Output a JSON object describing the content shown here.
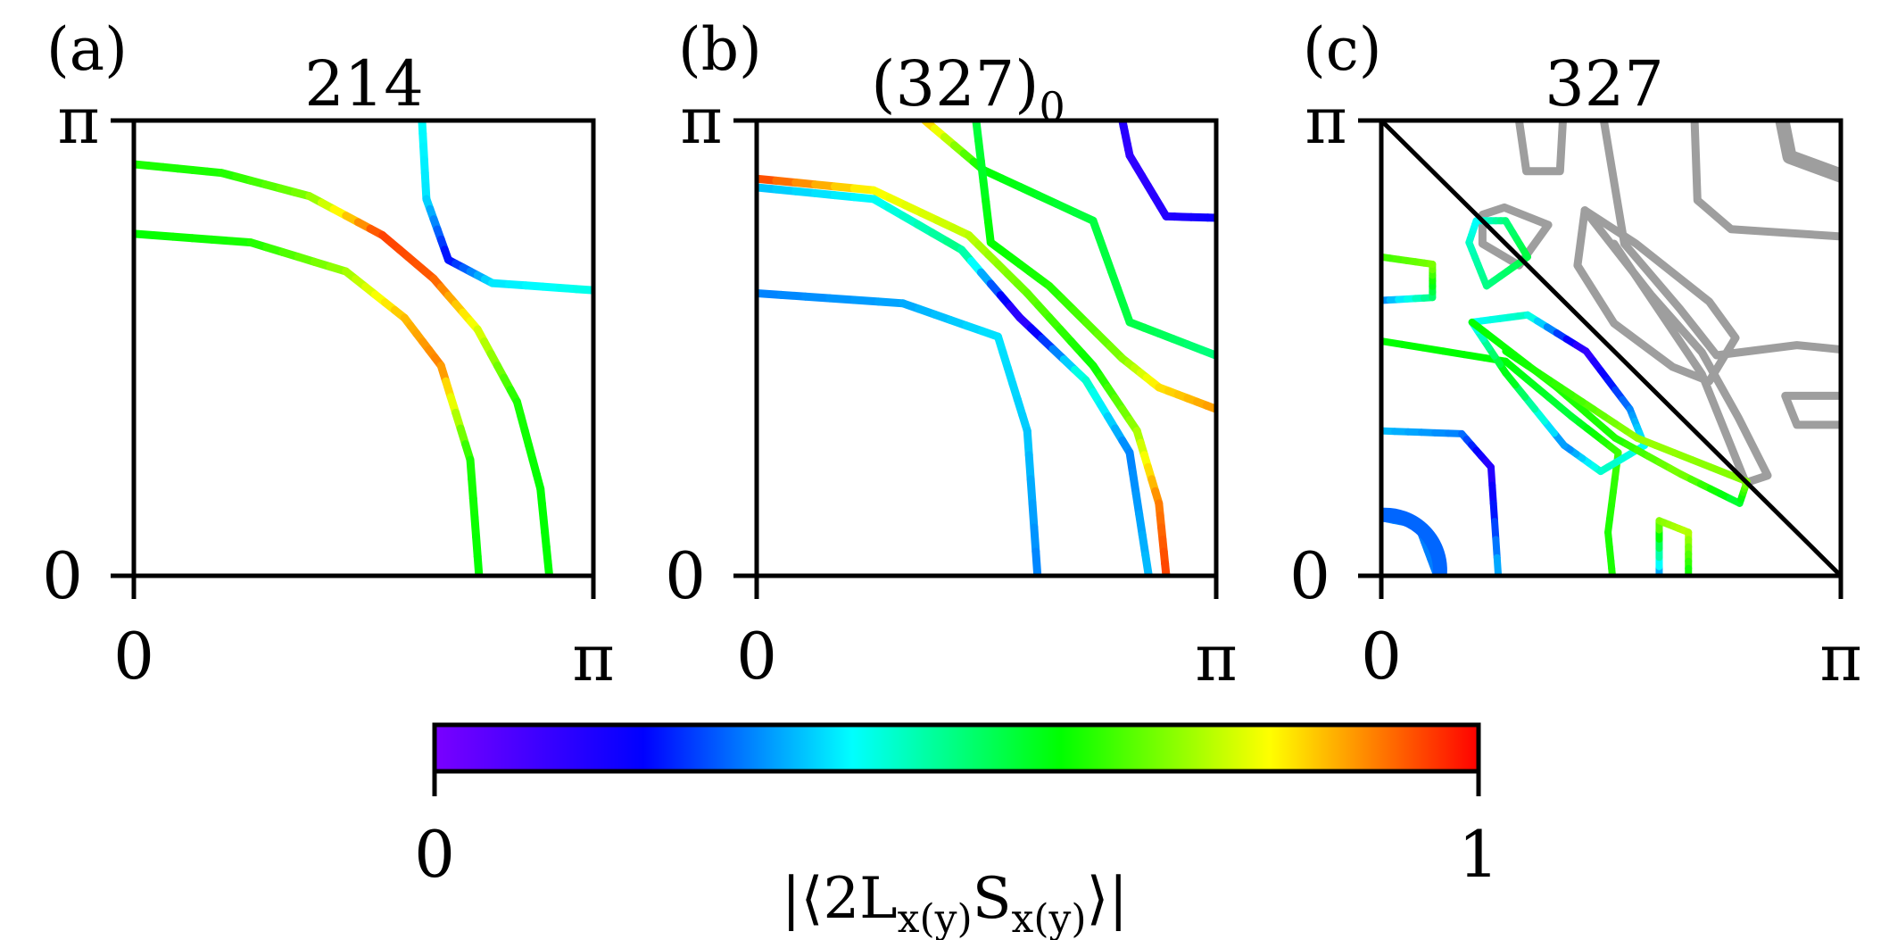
{
  "figure": {
    "panels": [
      {
        "id": "a",
        "label": "(a)",
        "title": "214",
        "xticks": [
          "0",
          "π"
        ],
        "yticks": [
          "0",
          "π"
        ]
      },
      {
        "id": "b",
        "label": "(b)",
        "title": "(327)",
        "title_sub": "0",
        "xticks": [
          "0",
          "π"
        ],
        "yticks": [
          "0",
          "π"
        ]
      },
      {
        "id": "c",
        "label": "(c)",
        "title": "327",
        "xticks": [
          "0",
          "π"
        ],
        "yticks": [
          "0",
          "π"
        ]
      }
    ],
    "colorbar": {
      "min_label": "0",
      "max_label": "1",
      "label": "|⟨2L",
      "label_sub": "x(y)",
      "label_mid": "S",
      "label_sub2": "x(y)",
      "label_end": "⟩|",
      "colors": [
        "#7a00ff",
        "#0000ff",
        "#00ffff",
        "#00ff00",
        "#ffff00",
        "#ff0000"
      ]
    }
  },
  "chart_data": {
    "type": "line",
    "description_axes": {
      "xlim": [
        0,
        3.1416
      ],
      "ylim": [
        0,
        3.1416
      ],
      "colorbar_range": [
        0,
        1
      ]
    },
    "panels": [
      {
        "title": "214",
        "curves": [
          {
            "points": [
              [
                0,
                2.84
              ],
              [
                0.6,
                2.78
              ],
              [
                1.2,
                2.62
              ],
              [
                1.7,
                2.35
              ],
              [
                2.05,
                2.05
              ],
              [
                2.35,
                1.7
              ],
              [
                2.62,
                1.2
              ],
              [
                2.78,
                0.6
              ],
              [
                2.84,
                0
              ]
            ],
            "colors": [
              0.62,
              0.62,
              0.7,
              0.95,
              0.93,
              0.78,
              0.62,
              0.6,
              0.6
            ]
          },
          {
            "points": [
              [
                0,
                2.36
              ],
              [
                0.8,
                2.3
              ],
              [
                1.45,
                2.1
              ],
              [
                1.85,
                1.78
              ],
              [
                2.1,
                1.45
              ],
              [
                2.3,
                0.8
              ],
              [
                2.36,
                0
              ]
            ],
            "colors": [
              0.6,
              0.62,
              0.72,
              0.85,
              0.9,
              0.62,
              0.6
            ]
          },
          {
            "points": [
              [
                1.97,
                3.1416
              ],
              [
                2.0,
                2.6
              ],
              [
                2.15,
                2.18
              ],
              [
                2.45,
                2.02
              ],
              [
                3.1416,
                1.97
              ]
            ],
            "colors": [
              0.4,
              0.38,
              0.2,
              0.38,
              0.42
            ]
          }
        ]
      },
      {
        "title": "(327)0",
        "curves": [
          {
            "points": [
              [
                0,
                2.74
              ],
              [
                0.8,
                2.66
              ],
              [
                1.45,
                2.35
              ],
              [
                1.85,
                1.95
              ],
              [
                2.3,
                1.45
              ],
              [
                2.6,
                1.0
              ],
              [
                2.75,
                0.5
              ],
              [
                2.8,
                0
              ]
            ],
            "colors": [
              0.95,
              0.8,
              0.75,
              0.68,
              0.6,
              0.72,
              0.9,
              0.95
            ]
          },
          {
            "points": [
              [
                0,
                2.68
              ],
              [
                0.8,
                2.6
              ],
              [
                1.4,
                2.25
              ],
              [
                1.8,
                1.78
              ],
              [
                2.25,
                1.35
              ],
              [
                2.55,
                0.85
              ],
              [
                2.68,
                0
              ]
            ],
            "colors": [
              0.35,
              0.4,
              0.5,
              0.1,
              0.45,
              0.3,
              0.35
            ]
          },
          {
            "points": [
              [
                0,
                1.95
              ],
              [
                1.0,
                1.88
              ],
              [
                1.65,
                1.65
              ],
              [
                1.85,
                1.0
              ],
              [
                1.92,
                0
              ]
            ],
            "colors": [
              0.3,
              0.33,
              0.38,
              0.36,
              0.3
            ]
          },
          {
            "points": [
              [
                1.15,
                3.1416
              ],
              [
                1.55,
                2.8
              ],
              [
                2.3,
                2.45
              ],
              [
                2.55,
                1.75
              ],
              [
                3.1416,
                1.52
              ]
            ],
            "colors": [
              0.85,
              0.6,
              0.55,
              0.55,
              0.5
            ]
          },
          {
            "points": [
              [
                1.5,
                3.1416
              ],
              [
                1.6,
                2.3
              ],
              [
                2.0,
                2.0
              ],
              [
                2.5,
                1.5
              ],
              [
                2.75,
                1.3
              ],
              [
                3.1416,
                1.15
              ]
            ],
            "colors": [
              0.55,
              0.6,
              0.62,
              0.7,
              0.82,
              0.88
            ]
          },
          {
            "points": [
              [
                2.5,
                3.1416
              ],
              [
                2.55,
                2.9
              ],
              [
                2.8,
                2.48
              ],
              [
                3.1416,
                2.47
              ]
            ],
            "colors": [
              0.15,
              0.12,
              0.14,
              0.18
            ]
          }
        ]
      },
      {
        "title": "327",
        "curves": [
          {
            "points": [
              [
                0.0,
                0.4
              ],
              [
                0.25,
                0.35
              ],
              [
                0.38,
                0.0
              ]
            ],
            "colors": [
              0.3,
              0.3,
              0.3
            ]
          },
          {
            "points": [
              [
                0,
                1.0
              ],
              [
                0.55,
                0.98
              ],
              [
                0.75,
                0.75
              ],
              [
                0.8,
                0
              ]
            ],
            "colors": [
              0.35,
              0.3,
              0.12,
              0.35
            ]
          },
          {
            "points": [
              [
                0,
                1.62
              ],
              [
                0.85,
                1.48
              ],
              [
                1.3,
                1.1
              ],
              [
                1.62,
                0.85
              ],
              [
                1.55,
                0.3
              ],
              [
                1.58,
                0
              ]
            ],
            "colors": [
              0.6,
              0.6,
              0.55,
              0.65,
              0.62,
              0.62
            ]
          },
          {
            "points": [
              [
                0,
                1.9
              ],
              [
                0.35,
                1.92
              ],
              [
                0.35,
                2.15
              ],
              [
                0,
                2.2
              ]
            ],
            "colors": [
              0.3,
              0.5,
              0.7,
              0.65
            ]
          },
          {
            "points": [
              [
                1.9,
                0
              ],
              [
                1.9,
                0.38
              ],
              [
                2.1,
                0.3
              ],
              [
                2.1,
                0
              ]
            ],
            "colors": [
              0.3,
              0.7,
              0.75,
              0.6
            ]
          },
          {
            "points": [
              [
                0.65,
                2.45
              ],
              [
                0.85,
                2.45
              ],
              [
                1.0,
                2.2
              ],
              [
                0.72,
                2.0
              ],
              [
                0.6,
                2.3
              ],
              [
                0.65,
                2.45
              ]
            ],
            "colors": [
              0.4,
              0.5,
              0.55,
              0.5,
              0.45,
              0.4
            ]
          },
          {
            "points": [
              [
                0.62,
                1.75
              ],
              [
                1.0,
                1.8
              ],
              [
                1.4,
                1.55
              ],
              [
                1.7,
                1.15
              ],
              [
                1.8,
                0.9
              ],
              [
                1.5,
                0.72
              ],
              [
                1.25,
                0.9
              ],
              [
                0.85,
                1.4
              ],
              [
                0.62,
                1.75
              ]
            ],
            "colors": [
              0.4,
              0.45,
              0.1,
              0.3,
              0.4,
              0.45,
              0.3,
              0.6,
              0.4
            ]
          },
          {
            "points": [
              [
                0.62,
                1.75
              ],
              [
                1.2,
                1.3
              ],
              [
                1.6,
                0.95
              ],
              [
                2.05,
                0.7
              ],
              [
                2.45,
                0.5
              ],
              [
                2.5,
                0.65
              ],
              [
                1.75,
                0.95
              ],
              [
                1.3,
                1.25
              ],
              [
                0.85,
                1.55
              ]
            ],
            "colors": [
              0.6,
              0.62,
              0.62,
              0.7,
              0.55,
              0.7,
              0.72,
              0.65,
              0.6
            ]
          }
        ],
        "grey_curves": 6,
        "diagonal": true
      }
    ]
  }
}
